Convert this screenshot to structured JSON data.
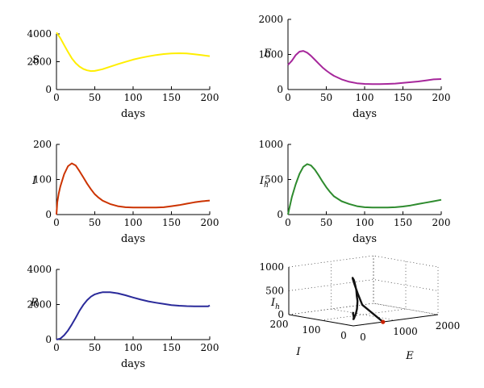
{
  "chart_data": [
    {
      "type": "line",
      "ylabel": "S",
      "xlabel": "days",
      "color": "#ffee00",
      "xlim": [
        0,
        200
      ],
      "ylim": [
        0,
        4000
      ],
      "xticks": [
        "0",
        "50",
        "100",
        "150",
        "200"
      ],
      "yticks": [
        "0",
        "2000",
        "4000"
      ],
      "x": [
        0,
        5,
        10,
        15,
        20,
        25,
        30,
        35,
        40,
        45,
        50,
        60,
        70,
        80,
        90,
        100,
        110,
        120,
        130,
        140,
        150,
        160,
        170,
        180,
        190,
        200
      ],
      "y": [
        4100,
        3700,
        3200,
        2700,
        2250,
        1900,
        1650,
        1480,
        1380,
        1330,
        1340,
        1460,
        1640,
        1820,
        1990,
        2150,
        2280,
        2390,
        2480,
        2550,
        2600,
        2610,
        2590,
        2540,
        2470,
        2400
      ]
    },
    {
      "type": "line",
      "ylabel": "E",
      "xlabel": "days",
      "color": "#a6279b",
      "xlim": [
        0,
        200
      ],
      "ylim": [
        0,
        2000
      ],
      "xticks": [
        "0",
        "50",
        "100",
        "150",
        "200"
      ],
      "yticks": [
        "0",
        "1000",
        "2000"
      ],
      "x": [
        0,
        5,
        10,
        15,
        20,
        25,
        30,
        35,
        40,
        45,
        50,
        55,
        60,
        70,
        80,
        90,
        100,
        110,
        120,
        130,
        140,
        150,
        160,
        170,
        180,
        190,
        200
      ],
      "y": [
        700,
        820,
        980,
        1080,
        1100,
        1050,
        960,
        850,
        740,
        630,
        540,
        460,
        390,
        290,
        220,
        180,
        160,
        155,
        155,
        160,
        170,
        190,
        210,
        230,
        260,
        290,
        300
      ]
    },
    {
      "type": "line",
      "ylabel": "I",
      "xlabel": "days",
      "color": "#cc3300",
      "xlim": [
        0,
        200
      ],
      "ylim": [
        0,
        200
      ],
      "xticks": [
        "0",
        "50",
        "100",
        "150",
        "200"
      ],
      "yticks": [
        "0",
        "100",
        "200"
      ],
      "x": [
        0,
        1,
        3,
        5,
        10,
        15,
        20,
        25,
        30,
        35,
        40,
        45,
        50,
        55,
        60,
        70,
        80,
        90,
        100,
        110,
        120,
        130,
        140,
        150,
        160,
        170,
        180,
        190,
        200
      ],
      "y": [
        0,
        35,
        60,
        80,
        115,
        138,
        146,
        140,
        124,
        106,
        88,
        72,
        58,
        48,
        40,
        30,
        24,
        21,
        20,
        20,
        20,
        20,
        21,
        24,
        27,
        31,
        35,
        38,
        40
      ]
    },
    {
      "type": "line",
      "ylabel": "I",
      "ylabel_sub": "h",
      "xlabel": "days",
      "color": "#2e8b2e",
      "xlim": [
        0,
        200
      ],
      "ylim": [
        0,
        1000
      ],
      "xticks": [
        "0",
        "50",
        "100",
        "150",
        "200"
      ],
      "yticks": [
        "0",
        "500",
        "1000"
      ],
      "x": [
        0,
        2,
        5,
        10,
        15,
        20,
        25,
        30,
        35,
        40,
        45,
        50,
        55,
        60,
        70,
        80,
        90,
        100,
        110,
        120,
        130,
        140,
        150,
        160,
        170,
        180,
        190,
        200
      ],
      "y": [
        0,
        100,
        250,
        430,
        580,
        680,
        720,
        700,
        640,
        560,
        470,
        390,
        320,
        260,
        190,
        150,
        120,
        105,
        100,
        100,
        100,
        105,
        115,
        130,
        150,
        170,
        190,
        210
      ]
    },
    {
      "type": "line",
      "ylabel": "R",
      "xlabel": "days",
      "color": "#2a2a9a",
      "xlim": [
        0,
        200
      ],
      "ylim": [
        0,
        4000
      ],
      "xticks": [
        "0",
        "50",
        "100",
        "150",
        "200"
      ],
      "yticks": [
        "0",
        "2000",
        "4000"
      ],
      "x": [
        0,
        5,
        10,
        15,
        20,
        25,
        30,
        35,
        40,
        45,
        50,
        55,
        60,
        70,
        80,
        90,
        100,
        110,
        120,
        130,
        140,
        150,
        160,
        170,
        180,
        190,
        198,
        200
      ],
      "y": [
        0,
        60,
        250,
        520,
        860,
        1240,
        1640,
        1980,
        2250,
        2450,
        2580,
        2650,
        2700,
        2700,
        2640,
        2530,
        2400,
        2280,
        2180,
        2100,
        2030,
        1970,
        1930,
        1910,
        1900,
        1900,
        1900,
        1950
      ]
    },
    {
      "type": "line3d",
      "zlabel": "I",
      "zlabel_sub": "h",
      "xlabel": "E",
      "ylabel": "I",
      "color": "#111111",
      "marker_color": "#cc2200",
      "zticks": [
        "0",
        "500",
        "1000"
      ],
      "eticks": [
        "0",
        "1000",
        "2000"
      ],
      "iticks": [
        "0",
        "100",
        "200"
      ],
      "e": [
        700,
        820,
        980,
        1080,
        1100,
        1050,
        960,
        850,
        740,
        630,
        540,
        460,
        390,
        290,
        220,
        180,
        160,
        155,
        160,
        170,
        200,
        230,
        260,
        300
      ],
      "i": [
        0,
        80,
        115,
        138,
        146,
        140,
        124,
        106,
        88,
        72,
        58,
        48,
        40,
        30,
        24,
        21,
        20,
        20,
        20,
        21,
        25,
        30,
        35,
        40
      ],
      "ih": [
        0,
        250,
        430,
        580,
        680,
        720,
        700,
        640,
        560,
        470,
        390,
        320,
        260,
        190,
        150,
        120,
        105,
        100,
        100,
        105,
        130,
        160,
        185,
        210
      ]
    }
  ]
}
